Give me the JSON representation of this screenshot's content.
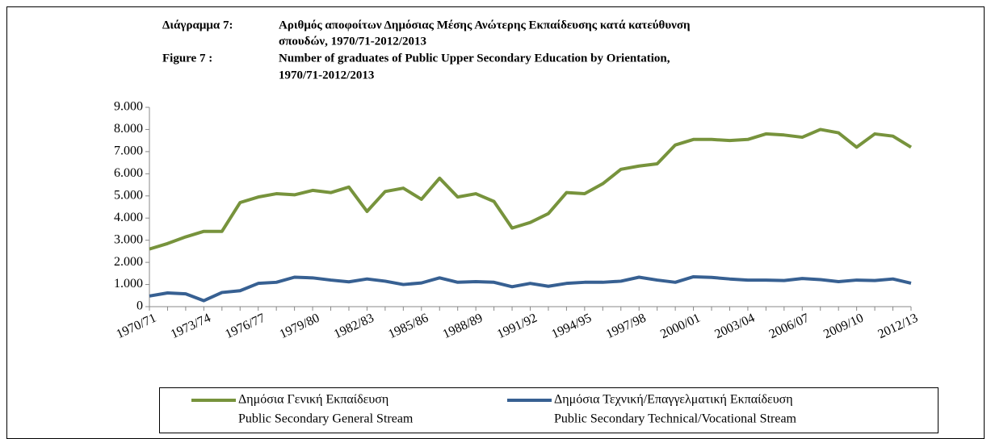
{
  "chart_data": {
    "type": "line",
    "title": {
      "el_label": "Διάγραμμα 7:",
      "el_lines": [
        "Αριθμός αποφοίτων Δημόσιας Μέσης Ανώτερης Εκπαίδευσης κατά κατεύθυνση",
        "σπουδών, 1970/71-2012/2013"
      ],
      "en_label": "Figure 7 :",
      "en_lines": [
        "Number of graduates of Public Upper Secondary Education by Orientation,",
        "1970/71-2012/2013"
      ]
    },
    "categories": [
      "1970/71",
      null,
      null,
      "1973/74",
      null,
      null,
      "1976/77",
      null,
      null,
      "1979/80",
      null,
      null,
      "1982/83",
      null,
      null,
      "1985/86",
      null,
      null,
      "1988/89",
      null,
      null,
      "1991/92",
      null,
      null,
      "1994/95",
      null,
      null,
      "1997/98",
      null,
      null,
      "2000/01",
      null,
      null,
      "2003/04",
      null,
      null,
      "2006/07",
      null,
      null,
      "2009/10",
      null,
      null,
      "2012/13"
    ],
    "series": [
      {
        "name": "Δημόσια Γενική Εκπαίδευση",
        "name_en": "Public Secondary General Stream",
        "color": "#77933c",
        "values": [
          2600,
          2850,
          3150,
          3400,
          3400,
          4700,
          4950,
          5100,
          5050,
          5250,
          5150,
          5400,
          4300,
          5200,
          5350,
          4850,
          5800,
          4950,
          5100,
          4750,
          3550,
          3800,
          4200,
          5150,
          5100,
          5550,
          6200,
          6350,
          6450,
          7300,
          7550,
          7550,
          7500,
          7550,
          7800,
          7750,
          7650,
          8000,
          7850,
          7200,
          7800,
          7700,
          7200
        ]
      },
      {
        "name": "Δημόσια Τεχνική/Επαγγελματική Εκπαίδευση",
        "name_en": "Public Secondary Technical/Vocational Stream",
        "color": "#376092",
        "values": [
          480,
          620,
          580,
          270,
          640,
          720,
          1050,
          1100,
          1330,
          1300,
          1200,
          1120,
          1250,
          1150,
          1000,
          1070,
          1300,
          1100,
          1130,
          1100,
          900,
          1050,
          920,
          1050,
          1100,
          1100,
          1150,
          1330,
          1200,
          1100,
          1350,
          1320,
          1250,
          1200,
          1200,
          1180,
          1270,
          1220,
          1130,
          1200,
          1180,
          1250,
          1060
        ]
      }
    ],
    "ylim": [
      0,
      9000
    ],
    "yticks": [
      0,
      {
        "value": 1000,
        "label": "1.000"
      },
      {
        "value": 2000,
        "label": "2.000"
      },
      {
        "value": 3000,
        "label": "3.000"
      },
      {
        "value": 4000,
        "label": "4.000"
      },
      {
        "value": 5000,
        "label": "5.000"
      },
      {
        "value": 6000,
        "label": "6.000"
      },
      {
        "value": 7000,
        "label": "7.000"
      },
      {
        "value": 8000,
        "label": "8.000"
      },
      {
        "value": 9000,
        "label": "9.000"
      }
    ],
    "grid": false,
    "legend": "bottom"
  }
}
